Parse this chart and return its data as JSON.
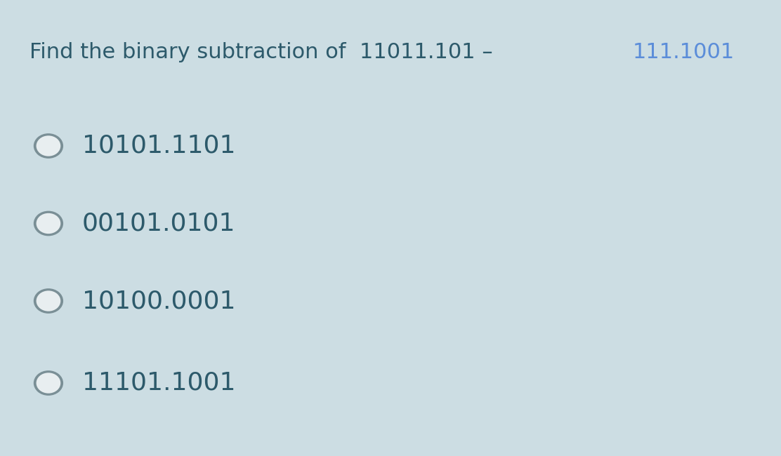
{
  "background_color": "#ccdde3",
  "title_prefix": "Find the binary subtraction of  11011.101 – ",
  "title_prefix_color": "#2d5a6b",
  "title_highlight": "111.1001",
  "title_highlight_color": "#5b8dd9",
  "title_fontsize": 22,
  "options": [
    "10101.1101",
    "00101.0101",
    "10100.0001",
    "11101.1001"
  ],
  "option_fontsize": 26,
  "option_color": "#2d5a6b",
  "circle_edge_color": "#7a8f96",
  "circle_face_color": "#e8eef0"
}
